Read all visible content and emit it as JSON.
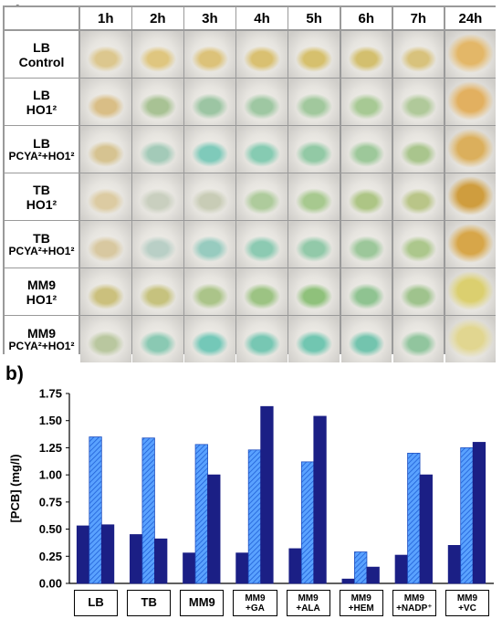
{
  "panel_a": {
    "label": "a)",
    "time_headers": [
      "1h",
      "2h",
      "3h",
      "4h",
      "5h",
      "6h",
      "7h",
      "24h"
    ],
    "rows": [
      {
        "line1": "LB",
        "line2": "Control",
        "colors": [
          "#dcc78e",
          "#dfc67f",
          "#dcc279",
          "#d9c071",
          "#d6c06d",
          "#d3bf6e",
          "#d8c27c",
          "#e3b768"
        ]
      },
      {
        "line1": "LB",
        "line2": "HO1²",
        "colors": [
          "#d9be86",
          "#a8c294",
          "#9cc5a3",
          "#9ec7a2",
          "#a1c89d",
          "#a7c994",
          "#b0c99a",
          "#e2b060"
        ]
      },
      {
        "line1": "LB",
        "line2": "PCYA²+HO1²",
        "colors": [
          "#d6c391",
          "#a3cab8",
          "#7fcaba",
          "#86cbb2",
          "#92c9a5",
          "#9dc89a",
          "#a9c58d",
          "#dbaf5c"
        ]
      },
      {
        "line1": "TB",
        "line2": "HO1²",
        "colors": [
          "#dccba2",
          "#c9cfbf",
          "#c8ccb6",
          "#aecb9c",
          "#a7c98f",
          "#adc585",
          "#b9c588",
          "#cf9d3e"
        ]
      },
      {
        "line1": "TB",
        "line2": "PCYA²+HO1²",
        "colors": [
          "#d8c8a0",
          "#b9cfc6",
          "#97cbbf",
          "#8ccab2",
          "#92c9a9",
          "#9cc79a",
          "#acc78c",
          "#d7a649"
        ]
      },
      {
        "line1": "MM9",
        "line2": "HO1²",
        "colors": [
          "#cbc07d",
          "#c6c27e",
          "#abc489",
          "#9cc383",
          "#8fc17b",
          "#8fc391",
          "#9fc38d",
          "#dbcf6f"
        ]
      },
      {
        "line1": "MM9",
        "line2": "PCYA²+HO1²",
        "colors": [
          "#b9c79f",
          "#8ac9b3",
          "#74c8b8",
          "#77c7b3",
          "#71c6b1",
          "#73c4ae",
          "#91c59e",
          "#e1d690"
        ]
      }
    ]
  },
  "chart_data": {
    "label": "b)",
    "type": "bar",
    "ylabel": "[PCB] (mg/l)",
    "ylim": [
      0,
      1.75
    ],
    "yticks": [
      "0.00",
      "0.25",
      "0.50",
      "0.75",
      "1.00",
      "1.25",
      "1.50",
      "1.75"
    ],
    "categories": [
      {
        "top": "LB",
        "bottom": ""
      },
      {
        "top": "TB",
        "bottom": ""
      },
      {
        "top": "MM9",
        "bottom": ""
      },
      {
        "top": "MM9",
        "bottom": "+GA"
      },
      {
        "top": "MM9",
        "bottom": "+ALA"
      },
      {
        "top": "MM9",
        "bottom": "+HEM"
      },
      {
        "top": "MM9",
        "bottom": "+NADP⁺"
      },
      {
        "top": "MM9",
        "bottom": "+VC"
      }
    ],
    "series": [
      {
        "style": "solid-navy",
        "color": "#1b1f85",
        "values": [
          0.53,
          0.45,
          0.28,
          0.28,
          0.32,
          0.04,
          0.26,
          0.35
        ]
      },
      {
        "style": "hatched-blue",
        "color": "#2f7cf0",
        "values": [
          1.35,
          1.34,
          1.28,
          1.23,
          1.12,
          0.29,
          1.2,
          1.25
        ]
      },
      {
        "style": "solid-navy",
        "color": "#1b1f85",
        "values": [
          0.54,
          0.41,
          1.0,
          1.63,
          1.54,
          0.15,
          1.0,
          1.3
        ]
      }
    ],
    "grid": false
  }
}
